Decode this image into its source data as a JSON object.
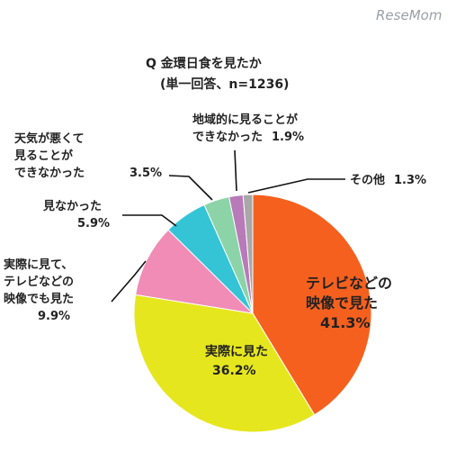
{
  "watermark": "ReseMom",
  "chart_data": {
    "type": "pie",
    "title": "Q 金環日食を見たか",
    "subtitle": "(単一回答、n=1236)",
    "start": "top, clockwise",
    "slices": [
      {
        "label_lines": [
          "テレビなどの",
          "映像で見た"
        ],
        "value": 41.3,
        "value_text": "41.3%",
        "color": "#f6601e"
      },
      {
        "label_lines": [
          "実際に見た"
        ],
        "value": 36.2,
        "value_text": "36.2%",
        "color": "#e6e61e"
      },
      {
        "label_lines": [
          "実際に見て、",
          "テレビなどの",
          "映像でも見た"
        ],
        "value": 9.9,
        "value_text": "9.9%",
        "color": "#f08cb6"
      },
      {
        "label_lines": [
          "見なかった"
        ],
        "value": 5.9,
        "value_text": "5.9%",
        "color": "#34c4d6"
      },
      {
        "label_lines": [
          "天気が悪くて",
          "見ることが",
          "できなかった"
        ],
        "value": 3.5,
        "value_text": "3.5%",
        "color": "#8cd4a8"
      },
      {
        "label_lines": [
          "地域的に見ることが",
          "できなかった"
        ],
        "value": 1.9,
        "value_text": "1.9%",
        "color": "#b87ab8"
      },
      {
        "label_lines": [
          "その他"
        ],
        "value": 1.3,
        "value_text": "1.3%",
        "color": "#a8a8a8"
      }
    ]
  }
}
